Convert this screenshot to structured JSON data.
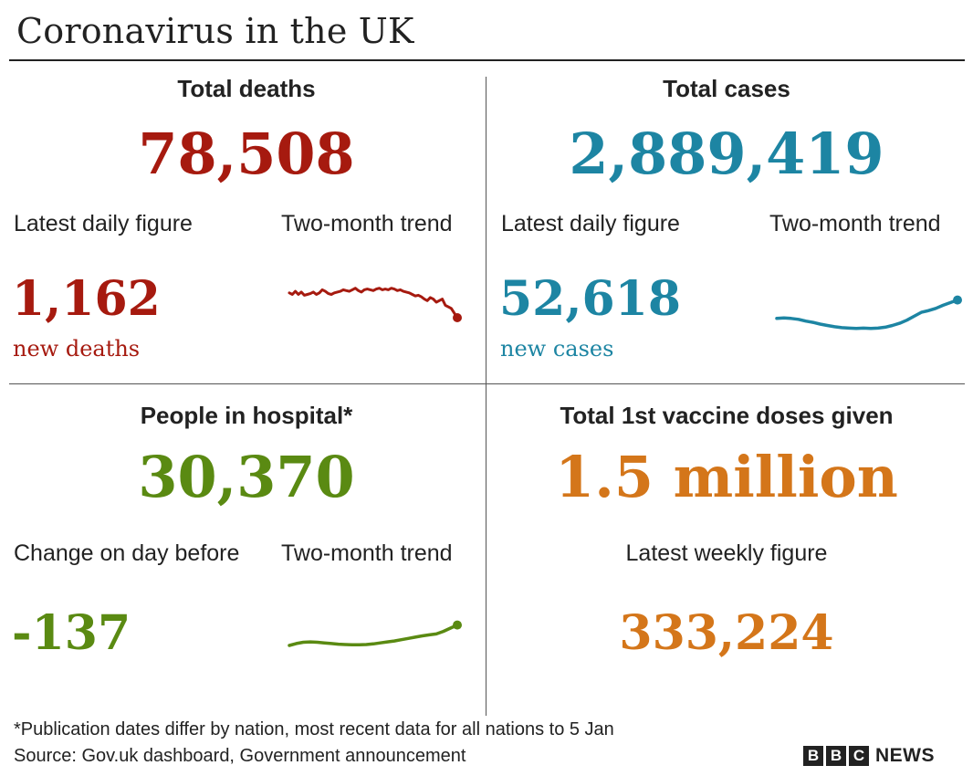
{
  "title": "Coronavirus in the UK",
  "colors": {
    "deaths": "#a61a0f",
    "cases": "#1d85a3",
    "hospital": "#5a8a12",
    "vaccine": "#d4761a"
  },
  "deaths": {
    "heading": "Total deaths",
    "total": "78,508",
    "sub_left": "Latest daily figure",
    "sub_right": "Two-month trend",
    "daily_value": "1,162",
    "daily_unit": "new deaths"
  },
  "cases": {
    "heading": "Total cases",
    "total": "2,889,419",
    "sub_left": "Latest daily figure",
    "sub_right": "Two-month trend",
    "daily_value": "52,618",
    "daily_unit": "new cases"
  },
  "hospital": {
    "heading": "People in hospital*",
    "total": "30,370",
    "sub_left": "Change on day before",
    "sub_right": "Two-month trend",
    "daily_value": "-137"
  },
  "vaccine": {
    "heading": "Total 1st vaccine doses given",
    "total": "1.5 million",
    "sub_center": "Latest weekly figure",
    "weekly_value": "333,224"
  },
  "footnote": "*Publication dates differ by nation, most recent data for all nations to 5 Jan",
  "source": "Source: Gov.uk dashboard, Government announcement",
  "logo": {
    "letters": [
      "B",
      "B",
      "C"
    ],
    "word": "NEWS"
  },
  "chart_data": [
    {
      "type": "line",
      "series": [
        {
          "name": "Two-month trend",
          "values": [
            32,
            30,
            34,
            30,
            33,
            29,
            30,
            31,
            33,
            30,
            32,
            36,
            34,
            31,
            30,
            32,
            33,
            34,
            36,
            35,
            34,
            36,
            38,
            35,
            33,
            36,
            37,
            36,
            35,
            37,
            38,
            36,
            37,
            36,
            38,
            37,
            35,
            36,
            34,
            33,
            32,
            30,
            28,
            29,
            27,
            24,
            22,
            26,
            24,
            20,
            22,
            24,
            16,
            14,
            12,
            6,
            0
          ]
        }
      ],
      "ylim": [
        0,
        40
      ]
    },
    {
      "type": "line",
      "series": [
        {
          "name": "Two-month trend",
          "values": [
            40,
            41,
            40,
            38,
            34,
            31,
            27,
            24,
            21,
            19,
            18,
            17,
            18,
            17,
            18,
            20,
            24,
            29,
            36,
            45,
            54,
            58,
            63,
            70,
            76,
            82
          ]
        }
      ],
      "ylim": [
        0,
        100
      ]
    },
    {
      "type": "line",
      "series": [
        {
          "name": "Two-month trend",
          "values": [
            0,
            3,
            5,
            5.5,
            5,
            4,
            3,
            2,
            1.5,
            1,
            1,
            1.5,
            2.5,
            4,
            5.5,
            7,
            9,
            11,
            13,
            15,
            16.5,
            18,
            22,
            27,
            32
          ]
        }
      ],
      "ylim": [
        0,
        40
      ]
    }
  ]
}
